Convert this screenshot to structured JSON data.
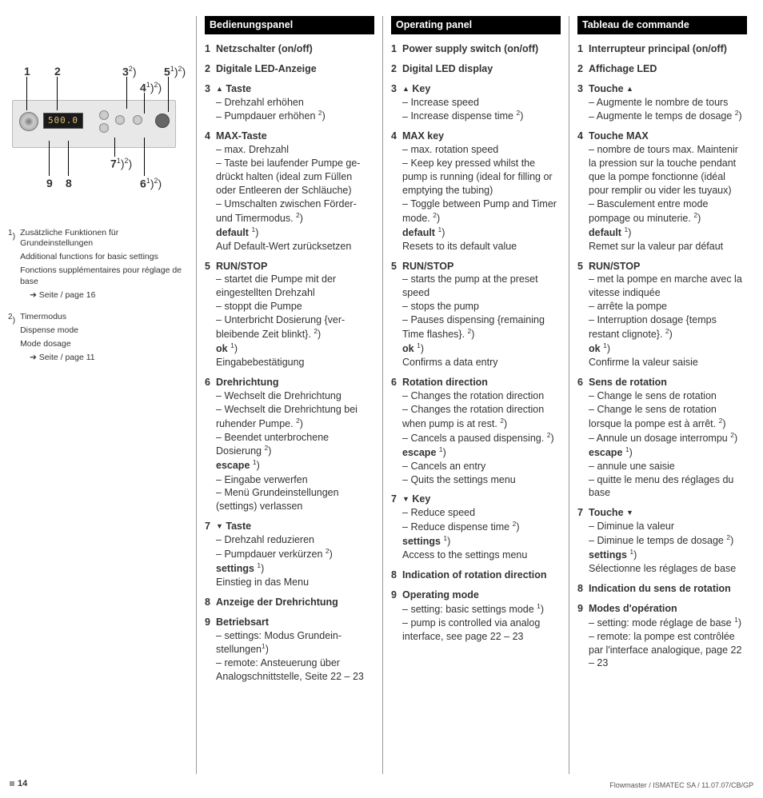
{
  "device": {
    "led_value": "500.0"
  },
  "callouts": [
    "1",
    "2",
    "3",
    "4",
    "5",
    "6",
    "7",
    "8",
    "9"
  ],
  "notes": {
    "n1": {
      "de": "Zusätzliche Funktionen für Grundeinstellungen",
      "en": "Additional functions for basic settings",
      "fr": "Fonctions supplémentaires pour réglage de base",
      "link": "Seite / page 16"
    },
    "n2": {
      "de": "Timermodus",
      "en": "Dispense mode",
      "fr": "Mode dosage",
      "link": "Seite / page 11"
    }
  },
  "de": {
    "header": "Bedienungspanel",
    "items": [
      {
        "t": "Netzschalter (on/off)"
      },
      {
        "t": "Digitale LED-Anzeige"
      },
      {
        "t": "▴ Taste",
        "l": [
          "Drehzahl erhöhen",
          "Pumpdauer erhöhen ²)"
        ]
      },
      {
        "t": "MAX-Taste",
        "l": [
          "max. Drehzahl",
          "Taste bei laufender Pumpe ge­drückt halten (ideal zum Füllen oder Entleeren der Schläuche)",
          "– Umschalten zwischen Förder- und Timermodus. ²)"
        ],
        "b": "default",
        "bs": "¹)",
        "a": "Auf Default-Wert zurücksetzen"
      },
      {
        "t": "RUN/STOP",
        "l": [
          "startet die Pumpe mit der eingestellten Drehzahl",
          "stoppt die Pumpe",
          "Unterbricht Dosierung {ver­bleibende Zeit blinkt}. ²)"
        ],
        "b": "ok",
        "bs": "¹)",
        "a": "Eingabebestätigung"
      },
      {
        "t": "Drehrichtung",
        "l": [
          "Wechselt die Drehrichtung",
          "Wechselt die Drehrichtung bei ruhender Pumpe. ²)",
          "Beendet unterbrochene Dosierung ²)"
        ],
        "b": "escape",
        "bs": "¹)",
        "a2": [
          "Eingabe verwerfen",
          "Menü Grundeinstellungen (settings) verlassen"
        ]
      },
      {
        "t": "▾ Taste",
        "l": [
          "Drehzahl reduzieren",
          "Pumpdauer verkürzen ²)"
        ],
        "b": "settings",
        "bs": "¹)",
        "a": "Einstieg in das Menu"
      },
      {
        "t": "Anzeige der Drehrichtung"
      },
      {
        "t": "Betriebsart",
        "l": [
          "settings: Modus Grundein­stellungen¹)",
          "remote: Ansteuerung über Analogschnittstelle, Seite 22 – 23"
        ]
      }
    ]
  },
  "en": {
    "header": "Operating panel",
    "items": [
      {
        "t": "Power supply switch (on/off)"
      },
      {
        "t": "Digital LED display"
      },
      {
        "t": "▴ Key",
        "l": [
          "Increase speed",
          "Increase dispense time ²)"
        ]
      },
      {
        "t": "MAX key",
        "l": [
          "max. rotation speed",
          "Keep key pressed whilst the pump is running (ideal for filling or emptying the tubing)",
          "– Toggle between Pump and Timer mode. ²)"
        ],
        "b": "default",
        "bs": "¹)",
        "a": "Resets to its default value"
      },
      {
        "t": "RUN/STOP",
        "l": [
          "starts the pump at the preset speed",
          "stops the pump",
          "Pauses dispensing {remaining Time flashes}. ²)"
        ],
        "b": "ok",
        "bs": "¹)",
        "a": "Confirms a data entry"
      },
      {
        "t": "Rotation direction",
        "l": [
          "Changes the rotation direction",
          "Changes the rotation direction when pump is at rest. ²)",
          "Cancels a paused dispensing. ²)"
        ],
        "b": "escape",
        "bs": "¹)",
        "a2": [
          "Cancels an entry",
          "Quits the settings menu"
        ]
      },
      {
        "t": "▾ Key",
        "l": [
          "Reduce speed",
          "Reduce dispense time  ²)"
        ],
        "b": "settings",
        "bs": "¹)",
        "a": "Access to the settings menu"
      },
      {
        "t": "Indication of rotation direction"
      },
      {
        "t": "Operating mode",
        "l": [
          "setting: basic settings mode ¹)",
          "pump is controlled via analog interface, see page 22 – 23"
        ]
      }
    ]
  },
  "fr": {
    "header": "Tableau de commande",
    "items": [
      {
        "t": "Interrupteur principal (on/off)"
      },
      {
        "t": "Affichage LED"
      },
      {
        "t": "Touche ▴",
        "l": [
          "Augmente le nombre de tours",
          "Augmente le temps de dosage ²)"
        ]
      },
      {
        "t": "Touche MAX",
        "l": [
          "nombre de tours max. Maintenir la pression sur la touche pendant que la pompe fonctionne (idéal pour remplir ou vider les tuyaux)",
          "– Basculement entre mode pompage ou minuterie.  ²)"
        ],
        "b": "default",
        "bs": "¹)",
        "a": "Remet sur la valeur par défaut"
      },
      {
        "t": "RUN/STOP",
        "l": [
          "met la pompe en marche avec la vitesse indiquée",
          "arrête la pompe",
          "Interruption dosage {temps restant clignote}.  ²)"
        ],
        "b": "ok",
        "bs": "¹)",
        "a": "Confirme la valeur saisie"
      },
      {
        "t": "Sens de rotation",
        "l": [
          "Change le sens de rotation",
          "Change le sens de rotation lorsque la pompe est à arrêt.  ²)",
          "Annule un dosage interrompu  ²)"
        ],
        "b": "escape",
        "bs": "¹)",
        "a2": [
          "annule une saisie",
          "quitte le menu des réglages du base"
        ]
      },
      {
        "t": "Touche ▾",
        "l": [
          "Diminue la valeur",
          "Diminue le temps de dosage ²)"
        ],
        "b": "settings",
        "bs": "¹)",
        "a": "Sélectionne les réglages de base"
      },
      {
        "t": "Indication du sens de rotation"
      },
      {
        "t": "Modes d'opération",
        "l": [
          "setting: mode réglage de base ¹)",
          "remote: la pompe est contrôlée par l'interface analogique, page 22 – 23"
        ]
      }
    ]
  },
  "footer": {
    "page_num": "14",
    "imprint": "Flowmaster / ISMATEC SA / 11.07.07/CB/GP"
  }
}
